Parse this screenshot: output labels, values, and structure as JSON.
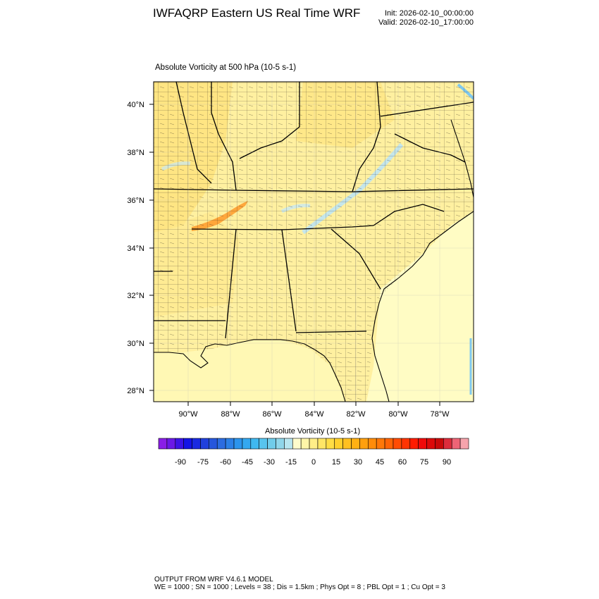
{
  "header": {
    "title": "IWFAQRP Eastern US Real Time WRF",
    "init": "Init: 2026-02-10_00:00:00",
    "valid": "Valid: 2026-02-10_17:00:00"
  },
  "map": {
    "subtitle": "Absolute Vorticity at 500 hPa   (10-5 s-1)",
    "lat_labels": [
      "40°N",
      "38°N",
      "36°N",
      "34°N",
      "32°N",
      "30°N",
      "28°N"
    ],
    "lon_labels": [
      "90°W",
      "88°W",
      "86°W",
      "84°W",
      "82°W",
      "80°W",
      "78°W"
    ]
  },
  "colorbar": {
    "title": "Absolute Vorticity  (10-5 s-1)",
    "tick_labels": [
      "-90",
      "-75",
      "-60",
      "-45",
      "-30",
      "-15",
      "0",
      "15",
      "30",
      "45",
      "60",
      "75",
      "90"
    ],
    "colors": [
      "#8a1ee6",
      "#6a19e6",
      "#3c14e6",
      "#1414e6",
      "#1a2ae0",
      "#2040dc",
      "#2656dc",
      "#2c6ce0",
      "#2c80e6",
      "#2c94ec",
      "#34a8f0",
      "#40b8f0",
      "#58c4ee",
      "#70ccea",
      "#90d6ea",
      "#b8e6f0",
      "#fffccc",
      "#fff5a8",
      "#ffee88",
      "#ffe666",
      "#ffdd44",
      "#ffd02c",
      "#ffc020",
      "#ffb014",
      "#ffa00e",
      "#ff8c0a",
      "#ff7808",
      "#ff6406",
      "#ff4c04",
      "#ff3402",
      "#ff1c00",
      "#f00a0a",
      "#dc0a0a",
      "#c80a0a",
      "#dc2c3c",
      "#ee6476",
      "#f6a4ac"
    ]
  },
  "footer": {
    "line1": "OUTPUT FROM WRF V4.6.1 MODEL",
    "line2": "WE = 1000 ; SN = 1000 ; Levels = 38 ; Dis = 1.5km ; Phys Opt = 8 ; PBL Opt = 1 ; Cu Opt = 3"
  }
}
